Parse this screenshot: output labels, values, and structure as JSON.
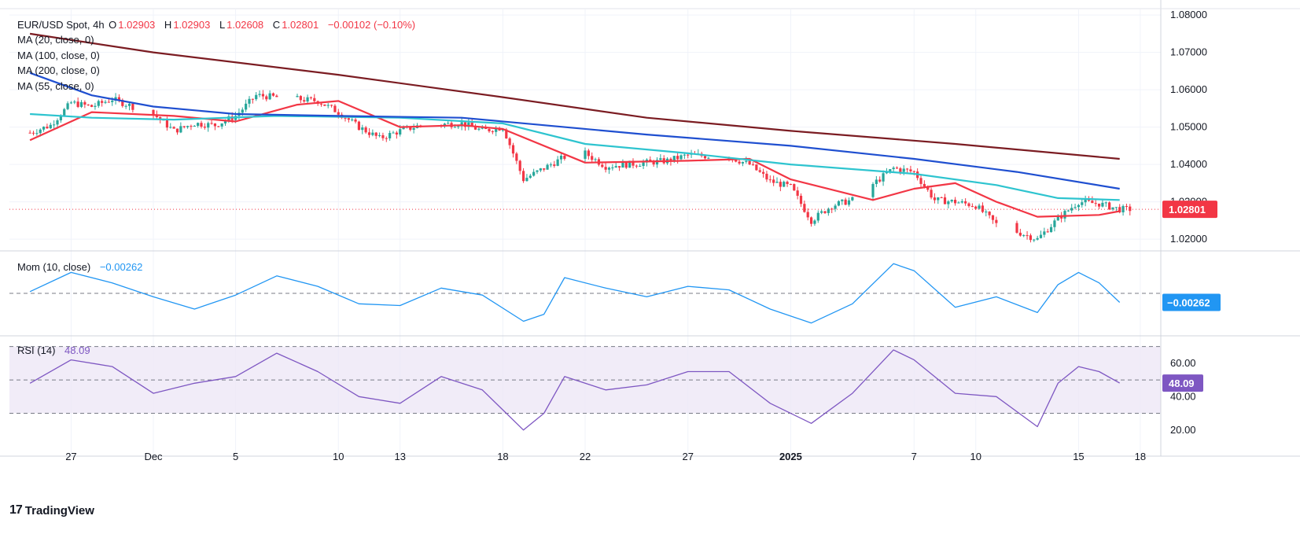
{
  "header": {
    "symbol": "EUR/USD Spot, 4h",
    "o_label": "O",
    "o_value": "1.02903",
    "h_label": "H",
    "h_value": "1.02903",
    "l_label": "L",
    "l_value": "1.02608",
    "c_label": "C",
    "c_value": "1.02801",
    "change": "−0.00102 (−0.10%)"
  },
  "indicators": {
    "ma20": "MA (20, close, 0)",
    "ma100": "MA (100, close, 0)",
    "ma200": "MA (200, close, 0)",
    "ma55": "MA (55, close, 0)",
    "mom_label": "Mom (10, close)",
    "mom_value": "−0.00262",
    "rsi_label": "RSI (14)",
    "rsi_value": "48.09"
  },
  "branding": {
    "logo_text": "TradingView"
  },
  "colors": {
    "up": "#26a69a",
    "down": "#f23645",
    "ma20": "#f23645",
    "ma55": "#2ec4cf",
    "ma100": "#1f4fd0",
    "ma200": "#7b1c22",
    "mom": "#2196f3",
    "rsi": "#7e57c2",
    "rsi_band": "#ede7f6",
    "grid": "#f0f3fa",
    "axis_text": "#131722"
  },
  "chart_data": [
    {
      "type": "candlestick",
      "title": "EUR/USD Spot, 4h",
      "ylim": [
        1.0175,
        1.0815
      ],
      "y_ticks": [
        "1.02000",
        "1.03000",
        "1.04000",
        "1.05000",
        "1.06000",
        "1.07000",
        "1.08000"
      ],
      "last_price_label": "1.02801",
      "x_ticks": [
        "27",
        "Dec",
        "5",
        "10",
        "13",
        "18",
        "22",
        "27",
        "2025",
        "7",
        "10",
        "15",
        "18"
      ],
      "x_tick_dates": [
        "2024-11-27",
        "2024-12-01",
        "2024-12-05",
        "2024-12-10",
        "2024-12-13",
        "2024-12-18",
        "2024-12-22",
        "2024-12-27",
        "2025-01-01",
        "2025-01-07",
        "2025-01-10",
        "2025-01-15",
        "2025-01-18"
      ],
      "close_path": [
        [
          "2024-11-25",
          1.0485
        ],
        [
          "2024-11-26",
          1.0505
        ],
        [
          "2024-11-27",
          1.0565
        ],
        [
          "2024-11-28",
          1.0555
        ],
        [
          "2024-11-29",
          1.0575
        ],
        [
          "2024-12-01",
          1.0535
        ],
        [
          "2024-12-02",
          1.049
        ],
        [
          "2024-12-03",
          1.051
        ],
        [
          "2024-12-04",
          1.0505
        ],
        [
          "2024-12-05",
          1.053
        ],
        [
          "2024-12-06",
          1.0585
        ],
        [
          "2024-12-07",
          1.058
        ],
        [
          "2024-12-09",
          1.057
        ],
        [
          "2024-12-10",
          1.054
        ],
        [
          "2024-12-11",
          1.05
        ],
        [
          "2024-12-12",
          1.047
        ],
        [
          "2024-12-13",
          1.049
        ],
        [
          "2024-12-14",
          1.0505
        ],
        [
          "2024-12-16",
          1.051
        ],
        [
          "2024-12-17",
          1.049
        ],
        [
          "2024-12-18",
          1.05
        ],
        [
          "2024-12-19",
          1.036
        ],
        [
          "2024-12-20",
          1.039
        ],
        [
          "2024-12-21",
          1.042
        ],
        [
          "2024-12-22",
          1.043
        ],
        [
          "2024-12-23",
          1.0395
        ],
        [
          "2024-12-24",
          1.04
        ],
        [
          "2024-12-26",
          1.041
        ],
        [
          "2024-12-27",
          1.0425
        ],
        [
          "2024-12-29",
          1.042
        ],
        [
          "2024-12-30",
          1.04
        ],
        [
          "2024-12-31",
          1.0355
        ],
        [
          "2025-01-01",
          1.034
        ],
        [
          "2025-01-02",
          1.025
        ],
        [
          "2025-01-03",
          1.029
        ],
        [
          "2025-01-04",
          1.0305
        ],
        [
          "2025-01-06",
          1.039
        ],
        [
          "2025-01-07",
          1.038
        ],
        [
          "2025-01-08",
          1.0305
        ],
        [
          "2025-01-09",
          1.03
        ],
        [
          "2025-01-10",
          1.029
        ],
        [
          "2025-01-11",
          1.024
        ],
        [
          "2025-01-12",
          1.022
        ],
        [
          "2025-01-13",
          1.02
        ],
        [
          "2025-01-14",
          1.0255
        ],
        [
          "2025-01-15",
          1.03
        ],
        [
          "2025-01-16",
          1.0295
        ],
        [
          "2025-01-17",
          1.028
        ]
      ],
      "series": [
        {
          "name": "MA (20, close, 0)",
          "values": [
            [
              "2024-11-25",
              1.0465
            ],
            [
              "2024-11-28",
              1.054
            ],
            [
              "2024-12-02",
              1.053
            ],
            [
              "2024-12-05",
              1.0515
            ],
            [
              "2024-12-08",
              1.056
            ],
            [
              "2024-12-10",
              1.057
            ],
            [
              "2024-12-13",
              1.05
            ],
            [
              "2024-12-16",
              1.0505
            ],
            [
              "2024-12-18",
              1.0495
            ],
            [
              "2024-12-22",
              1.0405
            ],
            [
              "2024-12-27",
              1.041
            ],
            [
              "2024-12-30",
              1.0415
            ],
            [
              "2025-01-01",
              1.036
            ],
            [
              "2025-01-05",
              1.0305
            ],
            [
              "2025-01-07",
              1.0335
            ],
            [
              "2025-01-09",
              1.035
            ],
            [
              "2025-01-11",
              1.03
            ],
            [
              "2025-01-13",
              1.026
            ],
            [
              "2025-01-16",
              1.0265
            ],
            [
              "2025-01-17",
              1.0275
            ]
          ]
        },
        {
          "name": "MA (55, close, 0)",
          "values": [
            [
              "2024-11-25",
              1.0535
            ],
            [
              "2024-11-28",
              1.0525
            ],
            [
              "2024-12-02",
              1.052
            ],
            [
              "2024-12-07",
              1.053
            ],
            [
              "2024-12-13",
              1.0525
            ],
            [
              "2024-12-18",
              1.051
            ],
            [
              "2024-12-22",
              1.0455
            ],
            [
              "2024-12-27",
              1.043
            ],
            [
              "2025-01-01",
              1.04
            ],
            [
              "2025-01-07",
              1.0375
            ],
            [
              "2025-01-11",
              1.0345
            ],
            [
              "2025-01-14",
              1.031
            ],
            [
              "2025-01-17",
              1.0305
            ]
          ]
        },
        {
          "name": "MA (100, close, 0)",
          "values": [
            [
              "2024-11-25",
              1.0645
            ],
            [
              "2024-11-28",
              1.0585
            ],
            [
              "2024-12-01",
              1.0555
            ],
            [
              "2024-12-05",
              1.0535
            ],
            [
              "2024-12-10",
              1.053
            ],
            [
              "2024-12-16",
              1.0525
            ],
            [
              "2024-12-20",
              1.0505
            ],
            [
              "2024-12-25",
              1.048
            ],
            [
              "2025-01-01",
              1.045
            ],
            [
              "2025-01-07",
              1.0415
            ],
            [
              "2025-01-12",
              1.038
            ],
            [
              "2025-01-17",
              1.0335
            ]
          ]
        },
        {
          "name": "MA (200, close, 0)",
          "values": [
            [
              "2024-11-25",
              1.075
            ],
            [
              "2024-12-01",
              1.07
            ],
            [
              "2024-12-10",
              1.064
            ],
            [
              "2024-12-18",
              1.058
            ],
            [
              "2024-12-25",
              1.0525
            ],
            [
              "2025-01-01",
              1.049
            ],
            [
              "2025-01-09",
              1.0455
            ],
            [
              "2025-01-17",
              1.0415
            ]
          ]
        }
      ]
    },
    {
      "type": "line",
      "title": "Mom (10, close)",
      "last_value_label": "−0.00262",
      "series": [
        {
          "name": "Mom (10, close)",
          "values": [
            [
              "2024-11-25",
              0.0005
            ],
            [
              "2024-11-27",
              0.006
            ],
            [
              "2024-11-29",
              0.003
            ],
            [
              "2024-12-01",
              -0.001
            ],
            [
              "2024-12-03",
              -0.0045
            ],
            [
              "2024-12-05",
              -0.0005
            ],
            [
              "2024-12-07",
              0.005
            ],
            [
              "2024-12-09",
              0.002
            ],
            [
              "2024-12-11",
              -0.003
            ],
            [
              "2024-12-13",
              -0.0035
            ],
            [
              "2024-12-15",
              0.0015
            ],
            [
              "2024-12-17",
              -0.0005
            ],
            [
              "2024-12-19",
              -0.008
            ],
            [
              "2024-12-20",
              -0.006
            ],
            [
              "2024-12-21",
              0.0045
            ],
            [
              "2024-12-23",
              0.0015
            ],
            [
              "2024-12-25",
              -0.001
            ],
            [
              "2024-12-27",
              0.002
            ],
            [
              "2024-12-29",
              0.001
            ],
            [
              "2024-12-31",
              -0.0045
            ],
            [
              "2025-01-02",
              -0.0085
            ],
            [
              "2025-01-04",
              -0.003
            ],
            [
              "2025-01-06",
              0.0085
            ],
            [
              "2025-01-07",
              0.0065
            ],
            [
              "2025-01-09",
              -0.004
            ],
            [
              "2025-01-11",
              -0.001
            ],
            [
              "2025-01-13",
              -0.0055
            ],
            [
              "2025-01-14",
              0.0025
            ],
            [
              "2025-01-15",
              0.006
            ],
            [
              "2025-01-16",
              0.003
            ],
            [
              "2025-01-17",
              -0.0026
            ]
          ]
        }
      ]
    },
    {
      "type": "line",
      "title": "RSI (14)",
      "ylim": [
        10,
        75
      ],
      "y_ticks": [
        "20.00",
        "40.00",
        "60.00"
      ],
      "bands": [
        30,
        50,
        70
      ],
      "last_value_label": "48.09",
      "series": [
        {
          "name": "RSI (14)",
          "values": [
            [
              "2024-11-25",
              48
            ],
            [
              "2024-11-27",
              62
            ],
            [
              "2024-11-29",
              58
            ],
            [
              "2024-12-01",
              42
            ],
            [
              "2024-12-03",
              48
            ],
            [
              "2024-12-05",
              52
            ],
            [
              "2024-12-07",
              66
            ],
            [
              "2024-12-09",
              55
            ],
            [
              "2024-12-11",
              40
            ],
            [
              "2024-12-13",
              36
            ],
            [
              "2024-12-15",
              52
            ],
            [
              "2024-12-17",
              44
            ],
            [
              "2024-12-19",
              20
            ],
            [
              "2024-12-20",
              30
            ],
            [
              "2024-12-21",
              52
            ],
            [
              "2024-12-23",
              44
            ],
            [
              "2024-12-25",
              47
            ],
            [
              "2024-12-27",
              55
            ],
            [
              "2024-12-29",
              55
            ],
            [
              "2024-12-31",
              36
            ],
            [
              "2025-01-02",
              24
            ],
            [
              "2025-01-04",
              42
            ],
            [
              "2025-01-06",
              68
            ],
            [
              "2025-01-07",
              62
            ],
            [
              "2025-01-09",
              42
            ],
            [
              "2025-01-11",
              40
            ],
            [
              "2025-01-13",
              22
            ],
            [
              "2025-01-14",
              48
            ],
            [
              "2025-01-15",
              58
            ],
            [
              "2025-01-16",
              55
            ],
            [
              "2025-01-17",
              48.09
            ]
          ]
        }
      ]
    }
  ]
}
